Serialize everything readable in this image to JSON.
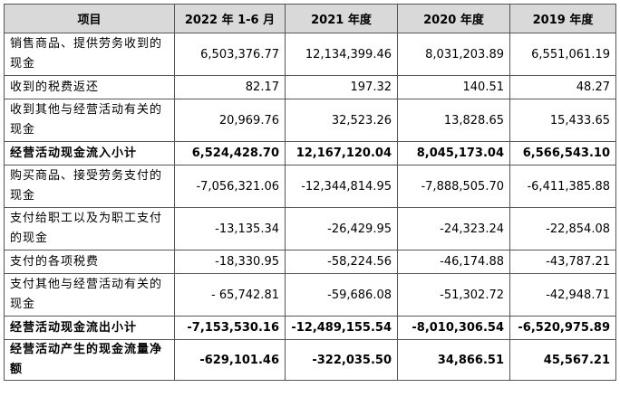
{
  "table": {
    "headers": [
      "项目",
      "2022 年 1-6 月",
      "2021 年度",
      "2020 年度",
      "2019 年度"
    ],
    "rows": [
      {
        "label": "销售商品、提供劳务收到的现金",
        "values": [
          "6,503,376.77",
          "12,134,399.46",
          "8,031,203.89",
          "6,551,061.19"
        ],
        "bold": false
      },
      {
        "label": "收到的税费返还",
        "values": [
          "82.17",
          "197.32",
          "140.51",
          "48.27"
        ],
        "bold": false
      },
      {
        "label": "收到其他与经营活动有关的现金",
        "values": [
          "20,969.76",
          "32,523.26",
          "13,828.65",
          "15,433.65"
        ],
        "bold": false
      },
      {
        "label": "经营活动现金流入小计",
        "values": [
          "6,524,428.70",
          "12,167,120.04",
          "8,045,173.04",
          "6,566,543.10"
        ],
        "bold": true
      },
      {
        "label": "购买商品、接受劳务支付的现金",
        "values": [
          "-7,056,321.06",
          "-12,344,814.95",
          "-7,888,505.70",
          "-6,411,385.88"
        ],
        "bold": false
      },
      {
        "label": "支付给职工以及为职工支付的现金",
        "values": [
          "-13,135.34",
          "-26,429.95",
          "-24,323.24",
          "-22,854.08"
        ],
        "bold": false
      },
      {
        "label": "支付的各项税费",
        "values": [
          "-18,330.95",
          "-58,224.56",
          "-46,174.88",
          "-43,787.21"
        ],
        "bold": false
      },
      {
        "label": "支付其他与经营活动有关的现金",
        "values": [
          "- 65,742.81",
          "-59,686.08",
          "-51,302.72",
          "-42,948.71"
        ],
        "bold": false
      },
      {
        "label": "经营活动现金流出小计",
        "values": [
          "-7,153,530.16",
          "-12,489,155.54",
          "-8,010,306.54",
          "-6,520,975.89"
        ],
        "bold": true
      },
      {
        "label": "经营活动产生的现金流量净额",
        "values": [
          "-629,101.46",
          "-322,035.50",
          "34,866.51",
          "45,567.21"
        ],
        "bold": true
      }
    ]
  },
  "colors": {
    "header_bg": "#d9d9d9",
    "border": "#555555",
    "text": "#000000"
  }
}
